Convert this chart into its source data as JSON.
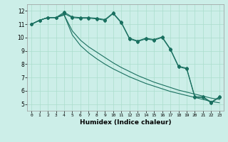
{
  "xlabel": "Humidex (Indice chaleur)",
  "bg_color": "#cceee8",
  "line_color": "#1a7060",
  "grid_color": "#aaddcc",
  "xlim": [
    -0.5,
    23.5
  ],
  "ylim": [
    4.5,
    12.5
  ],
  "xticks": [
    0,
    1,
    2,
    3,
    4,
    5,
    6,
    7,
    8,
    9,
    10,
    11,
    12,
    13,
    14,
    15,
    16,
    17,
    18,
    19,
    20,
    21,
    22,
    23
  ],
  "yticks": [
    5,
    6,
    7,
    8,
    9,
    10,
    11,
    12
  ],
  "series1": [
    11.0,
    11.3,
    11.5,
    11.5,
    11.8,
    11.5,
    11.45,
    11.45,
    11.4,
    11.3,
    11.8,
    11.1,
    9.9,
    9.7,
    9.9,
    9.8,
    10.0,
    9.1,
    7.8,
    7.65,
    5.5,
    5.5,
    5.1,
    5.5
  ],
  "series2": [
    11.0,
    11.3,
    11.5,
    11.5,
    11.9,
    11.55,
    11.5,
    11.5,
    11.45,
    11.35,
    11.85,
    11.15,
    9.95,
    9.75,
    9.95,
    9.85,
    10.05,
    9.15,
    7.85,
    7.7,
    5.55,
    5.55,
    5.15,
    5.55
  ],
  "series3": [
    11.0,
    11.3,
    11.5,
    11.5,
    11.7,
    10.5,
    9.8,
    9.3,
    8.9,
    8.5,
    8.1,
    7.75,
    7.45,
    7.15,
    6.9,
    6.65,
    6.45,
    6.25,
    6.05,
    5.9,
    5.75,
    5.6,
    5.45,
    5.35
  ],
  "series4": [
    11.0,
    11.3,
    11.5,
    11.5,
    11.7,
    10.2,
    9.4,
    8.85,
    8.4,
    8.0,
    7.65,
    7.35,
    7.05,
    6.8,
    6.55,
    6.35,
    6.15,
    5.95,
    5.8,
    5.65,
    5.5,
    5.35,
    5.2,
    5.1
  ]
}
